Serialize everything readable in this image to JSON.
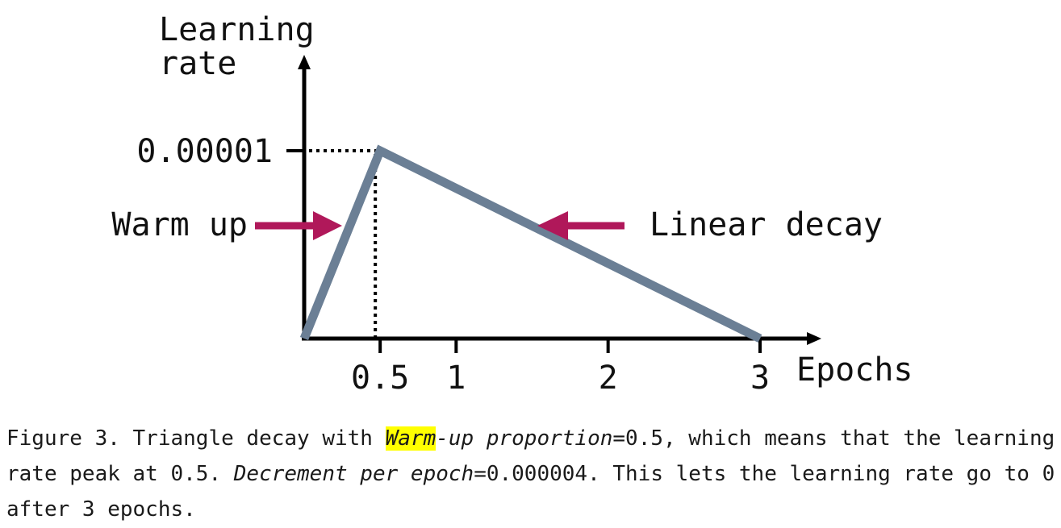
{
  "chart_data": {
    "type": "line",
    "xlabel": "Epochs",
    "ylabel": [
      "Learning",
      "rate"
    ],
    "x": [
      0,
      0.5,
      3
    ],
    "y": [
      0,
      1e-05,
      0
    ],
    "xticks": [
      "0.5",
      "1",
      "2",
      "3"
    ],
    "xtick_values": [
      0.5,
      1,
      2,
      3
    ],
    "yticks": [
      "0.00001"
    ],
    "ytick_values": [
      1e-05
    ],
    "xlim": [
      0,
      3.4
    ],
    "ylim": [
      0,
      1.3e-05
    ],
    "grid": false,
    "annotations": [
      {
        "text": "Warm up",
        "target_x": 0.25,
        "arrow": "right"
      },
      {
        "text": "Linear decay",
        "target_x": 1.5,
        "arrow": "left"
      }
    ],
    "line_color": "#6b7f95",
    "arrow_color": "#b0185a",
    "guide_style": "dotted"
  },
  "caption": {
    "prefix": "Figure 3. Triangle decay with ",
    "highlight": "Warm",
    "italic1": "-up proportion",
    "mid1": "=0.5, which means that the learning rate peak at 0.5. ",
    "italic2": "Decrement per epoch",
    "suffix": "=0.000004. This lets the learning rate go to 0 after 3 epochs.",
    "highlight_color": "#ffff00"
  }
}
